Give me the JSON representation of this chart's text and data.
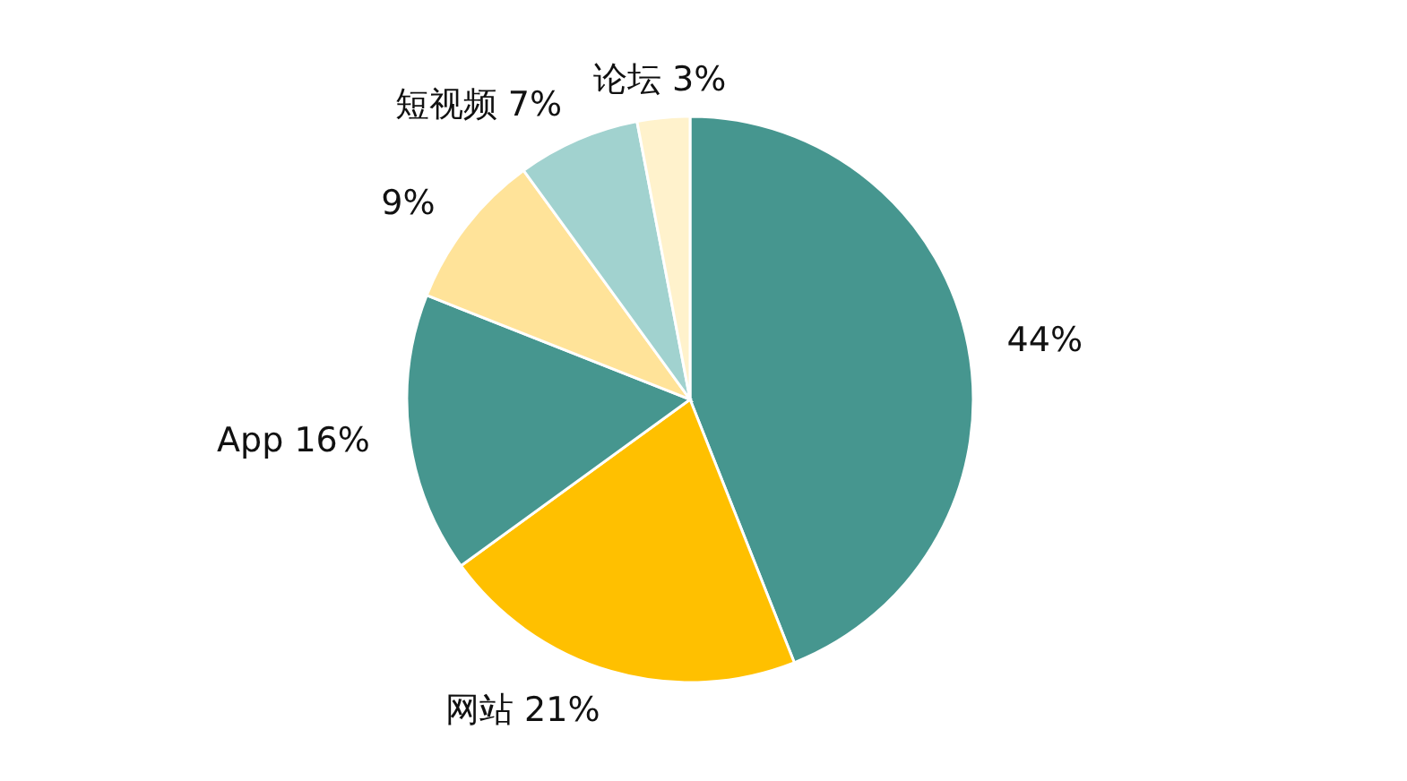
{
  "chart_data": {
    "type": "pie",
    "categories": [
      null,
      "网站",
      "App",
      null,
      "短视频",
      "论坛"
    ],
    "values": [
      44,
      21,
      16,
      9,
      7,
      3
    ],
    "value_labels": [
      "44%",
      "21%",
      "16%",
      "9%",
      "7%",
      "3%"
    ],
    "colors": [
      "#46968f",
      "#ffc000",
      "#46968f",
      "#ffe399",
      "#a1d2cf",
      "#fff2cc"
    ],
    "legend": false
  }
}
